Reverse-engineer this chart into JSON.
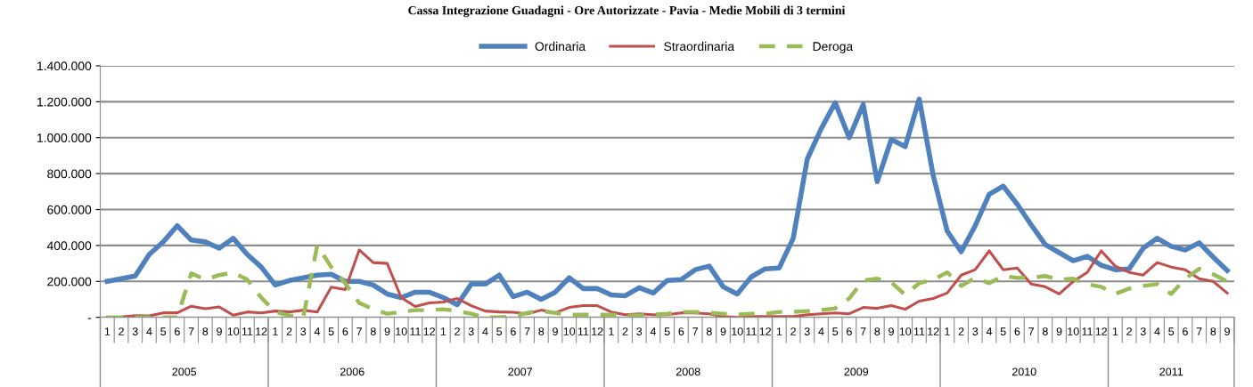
{
  "chart_data": {
    "type": "line",
    "title": "Cassa Integrazione Guadagni - Ore Autorizzate - Pavia - Medie Mobili di 3 termini",
    "categories": [
      "1",
      "2",
      "3",
      "4",
      "5",
      "6",
      "7",
      "8",
      "9",
      "10",
      "11",
      "12",
      "1",
      "2",
      "3",
      "4",
      "5",
      "6",
      "7",
      "8",
      "9",
      "10",
      "11",
      "12",
      "1",
      "2",
      "3",
      "4",
      "5",
      "6",
      "7",
      "8",
      "9",
      "10",
      "11",
      "12",
      "1",
      "2",
      "3",
      "4",
      "5",
      "6",
      "7",
      "8",
      "9",
      "10",
      "11",
      "12",
      "1",
      "2",
      "3",
      "4",
      "5",
      "6",
      "7",
      "8",
      "9",
      "10",
      "11",
      "12",
      "1",
      "2",
      "3",
      "4",
      "5",
      "6",
      "7",
      "8",
      "9",
      "10",
      "11",
      "12",
      "1",
      "2",
      "3",
      "4",
      "5",
      "6",
      "7",
      "8",
      "9"
    ],
    "annotations": [
      "2005",
      "2006",
      "2007",
      "2008",
      "2009",
      "2010",
      "2011"
    ],
    "series": [
      {
        "name": "Ordinaria",
        "color": "#4f81bd",
        "line_style": "solid",
        "values": [
          200000,
          215000,
          230000,
          350000,
          420000,
          510000,
          430000,
          420000,
          385000,
          440000,
          350000,
          280000,
          180000,
          205000,
          220000,
          235000,
          240000,
          200000,
          200000,
          180000,
          130000,
          110000,
          140000,
          140000,
          110000,
          70000,
          185000,
          185000,
          235000,
          115000,
          140000,
          100000,
          140000,
          220000,
          160000,
          160000,
          125000,
          120000,
          165000,
          135000,
          205000,
          210000,
          265000,
          285000,
          170000,
          130000,
          225000,
          270000,
          275000,
          440000,
          880000,
          1050000,
          1195000,
          1000000,
          1185000,
          755000,
          990000,
          950000,
          1215000,
          790000,
          480000,
          365000,
          510000,
          685000,
          730000,
          630000,
          515000,
          405000,
          360000,
          315000,
          340000,
          290000,
          265000,
          270000,
          385000,
          440000,
          395000,
          375000,
          415000,
          335000,
          260000
        ]
      },
      {
        "name": "Straordinaria",
        "color": "#c0504d",
        "line_style": "solid",
        "values": [
          0,
          2000,
          10000,
          8000,
          25000,
          25000,
          62000,
          48000,
          58000,
          12000,
          30000,
          25000,
          35000,
          30000,
          40000,
          30000,
          168000,
          155000,
          375000,
          305000,
          300000,
          110000,
          60000,
          80000,
          85000,
          105000,
          65000,
          35000,
          30000,
          28000,
          20000,
          40000,
          25000,
          55000,
          65000,
          65000,
          30000,
          15000,
          20000,
          15000,
          15000,
          25000,
          25000,
          20000,
          5000,
          0,
          5000,
          5000,
          5000,
          5000,
          15000,
          20000,
          25000,
          20000,
          55000,
          50000,
          65000,
          45000,
          90000,
          105000,
          135000,
          235000,
          265000,
          370000,
          265000,
          275000,
          185000,
          170000,
          130000,
          200000,
          250000,
          370000,
          285000,
          250000,
          235000,
          305000,
          280000,
          265000,
          215000,
          200000,
          135000
        ]
      },
      {
        "name": "Deroga",
        "color": "#9bbb59",
        "line_style": "dashed",
        "values": [
          0,
          0,
          0,
          0,
          0,
          0,
          245000,
          210000,
          235000,
          250000,
          210000,
          110000,
          30000,
          10000,
          0,
          400000,
          280000,
          190000,
          80000,
          45000,
          20000,
          30000,
          40000,
          40000,
          45000,
          35000,
          20000,
          0,
          0,
          5000,
          25000,
          35000,
          25000,
          15000,
          15000,
          15000,
          15000,
          10000,
          10000,
          15000,
          20000,
          30000,
          30000,
          25000,
          20000,
          15000,
          20000,
          20000,
          30000,
          30000,
          35000,
          40000,
          50000,
          105000,
          205000,
          215000,
          195000,
          125000,
          190000,
          210000,
          250000,
          175000,
          220000,
          190000,
          230000,
          220000,
          220000,
          230000,
          210000,
          215000,
          185000,
          170000,
          130000,
          160000,
          175000,
          185000,
          130000,
          215000,
          270000,
          240000,
          200000
        ]
      }
    ],
    "ylim": [
      0,
      1400000
    ],
    "yticks": [
      {
        "value": 0,
        "label": "-"
      },
      {
        "value": 200000,
        "label": "200.000"
      },
      {
        "value": 400000,
        "label": "400.000"
      },
      {
        "value": 600000,
        "label": "600.000"
      },
      {
        "value": 800000,
        "label": "800.000"
      },
      {
        "value": 1000000,
        "label": "1.000.000"
      },
      {
        "value": 1200000,
        "label": "1.200.000"
      },
      {
        "value": 1400000,
        "label": "1.400.000"
      }
    ],
    "grid": "y",
    "legend": "top",
    "marker": "none"
  }
}
